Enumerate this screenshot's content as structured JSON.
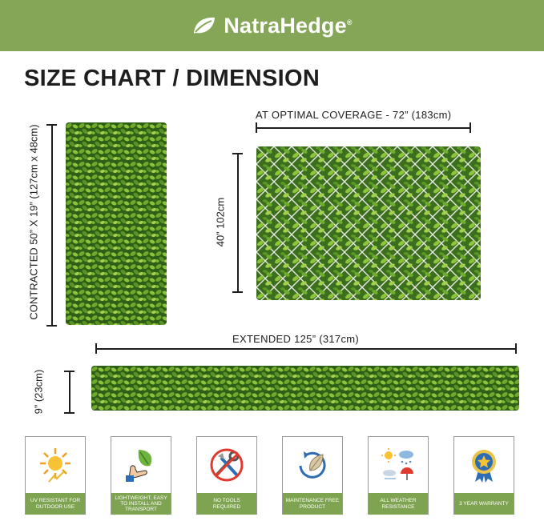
{
  "brand": {
    "name": "NatraHedge",
    "registered": "®",
    "color": "#84a656"
  },
  "title": "SIZE CHART / DIMENSION",
  "labels": {
    "contracted": "CONTRACTED 50” X 19” (127cm x 48cm)",
    "optimal": "AT OPTIMAL COVERAGE - 72” (183cm)",
    "height": "40” 102cm",
    "extended": "EXTENDED 125” (317cm)",
    "extended_height": "9” (23cm)"
  },
  "features": [
    {
      "label": "UV RESISTANT FOR OUTDOOR USE",
      "icon": "sun-icon"
    },
    {
      "label": "LIGHTWEIGHT, EASY TO INSTALL AND TRANSPORT",
      "icon": "hand-leaf-icon"
    },
    {
      "label": "NO TOOLS REQUIRED",
      "icon": "no-tools-icon"
    },
    {
      "label": "MAINTENANCE FREE PRODUCT",
      "icon": "leaf-cycle-icon"
    },
    {
      "label": "ALL WEATHER RESISTANCE",
      "icon": "weather-icon"
    },
    {
      "label": "3 YEAR WARRANTY",
      "icon": "badge-icon"
    }
  ]
}
